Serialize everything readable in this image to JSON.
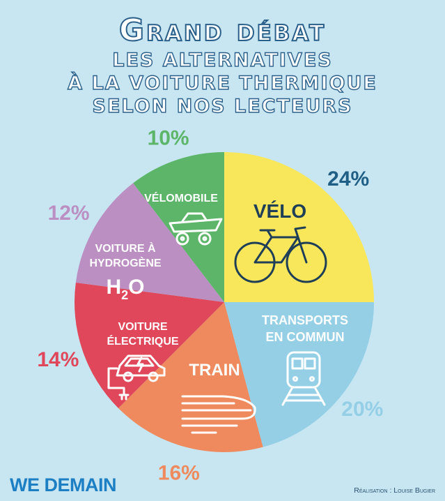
{
  "header": {
    "title": "Grand débat",
    "subtitle_lines": [
      "LES ALTERNATIVES",
      "À LA VOITURE THERMIQUE",
      "SELON NOS LECTEURS"
    ]
  },
  "chart_data": {
    "type": "pie",
    "categories": [
      "VÉLO",
      "TRANSPORTS EN COMMUN",
      "TRAIN",
      "VOITURE ÉLECTRIQUE",
      "VOITURE À HYDROGÈNE",
      "VÉLOMOBILE"
    ],
    "values": [
      24,
      20,
      16,
      14,
      12,
      10
    ],
    "percent_labels": [
      "24%",
      "20%",
      "16%",
      "14%",
      "12%",
      "10%"
    ],
    "colors": [
      "#f8e75a",
      "#94cfe6",
      "#ef8a5e",
      "#e0475a",
      "#bb8fc2",
      "#5cb568"
    ],
    "label_colors": [
      "#1f5f86",
      "#94cfe6",
      "#ef8a5e",
      "#e0475a",
      "#bb8fc2",
      "#5cb568"
    ],
    "icons": [
      "bicycle-icon",
      "tram-icon",
      "high-speed-train-icon",
      "electric-car-icon",
      "h2o-icon",
      "velomobile-icon"
    ],
    "h2o_text": [
      "H",
      "2",
      "O"
    ]
  },
  "footer": {
    "brand": "WE DEMAIN",
    "credit": "Réalisation : Louise Bugier"
  }
}
